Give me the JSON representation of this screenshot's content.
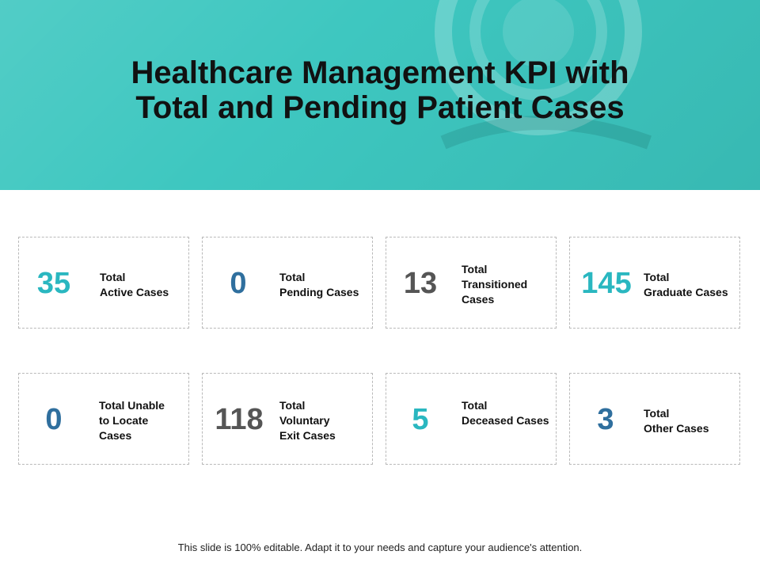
{
  "slide": {
    "title_line1": "Healthcare Management KPI with",
    "title_line2": "Total and Pending Patient Cases",
    "footer": "This slide is 100% editable. Adapt it to your needs and capture your audience's attention."
  },
  "colors": {
    "banner": "#3ec7c0",
    "teal": "#2ab7c0",
    "blue": "#2f6f9e",
    "gray": "#555555"
  },
  "kpis": [
    {
      "value": "35",
      "label_lines": [
        "Total",
        "Active Cases"
      ],
      "color": "#2ab7c0"
    },
    {
      "value": "0",
      "label_lines": [
        "Total",
        "Pending Cases"
      ],
      "color": "#2f6f9e"
    },
    {
      "value": "13",
      "label_lines": [
        "Total",
        "Transitioned",
        "Cases"
      ],
      "color": "#555555"
    },
    {
      "value": "145",
      "label_lines": [
        "Total",
        "Graduate Cases"
      ],
      "color": "#2ab7c0"
    },
    {
      "value": "0",
      "label_lines": [
        "Total Unable",
        "to Locate",
        "Cases"
      ],
      "color": "#2f6f9e"
    },
    {
      "value": "118",
      "label_lines": [
        "Total",
        "Voluntary",
        "Exit Cases"
      ],
      "color": "#555555"
    },
    {
      "value": "5",
      "label_lines": [
        "Total",
        "Deceased Cases"
      ],
      "color": "#2ab7c0"
    },
    {
      "value": "3",
      "label_lines": [
        "Total",
        "Other Cases"
      ],
      "color": "#2f6f9e"
    }
  ]
}
